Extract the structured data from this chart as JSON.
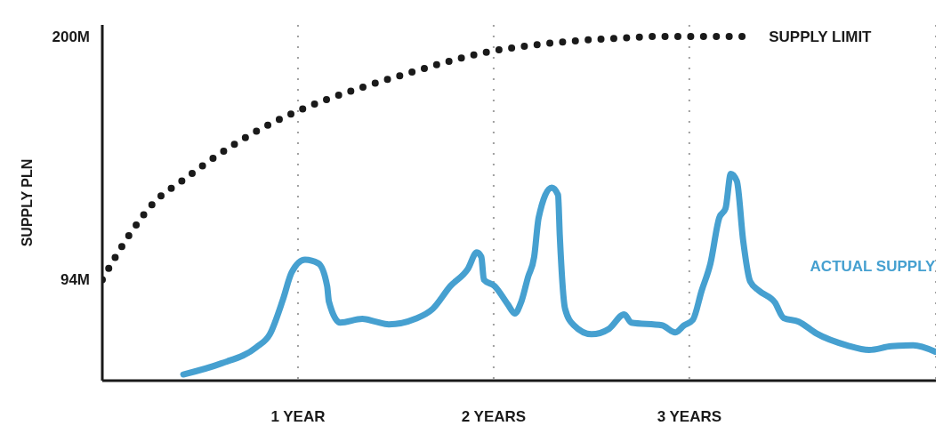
{
  "chart_data": {
    "type": "line",
    "ylabel": "SUPPLY PLN",
    "xlim": [
      0,
      4.26
    ],
    "ylim": [
      50,
      205
    ],
    "xticks": [
      {
        "value": 1,
        "label": "1 YEAR"
      },
      {
        "value": 2,
        "label": "2 YEARS"
      },
      {
        "value": 3,
        "label": "3 YEARS"
      }
    ],
    "yticks": [
      {
        "value": 94,
        "label": "94M"
      },
      {
        "value": 200,
        "label": "200M"
      }
    ],
    "grid": "x",
    "legend": false,
    "series": [
      {
        "name": "SUPPLY LIMIT",
        "color": "#1a1a1a",
        "line_style": "dotted",
        "x": [
          0,
          0.135,
          0.27,
          0.405,
          0.586,
          0.788,
          0.968,
          1.149,
          1.329,
          1.554,
          1.779,
          1.973,
          2.185,
          2.41,
          2.635,
          2.86,
          3.27
        ],
        "values": [
          94,
          113.1,
          128.1,
          136.9,
          148,
          158.7,
          166.3,
          172.6,
          177.8,
          183.7,
          189.3,
          193.3,
          196,
          198,
          199.2,
          200,
          200
        ]
      },
      {
        "name": "ACTUAL SUPPLY",
        "color": "#46a0d0",
        "line_style": "solid",
        "x": [
          0.414,
          0.608,
          0.788,
          0.856,
          0.923,
          0.968,
          1.036,
          1.104,
          1.149,
          1.158,
          1.216,
          1.329,
          1.396,
          1.464,
          1.599,
          1.689,
          1.779,
          1.869,
          1.914,
          1.937,
          1.95,
          2.005,
          2.072,
          2.108,
          2.14,
          2.176,
          2.207,
          2.23,
          2.297,
          2.329,
          2.338,
          2.365,
          2.41,
          2.5,
          2.59,
          2.667,
          2.703,
          2.86,
          2.928,
          2.973,
          3.018,
          3.063,
          3.108,
          3.153,
          3.185,
          3.212,
          3.243,
          3.275,
          3.311,
          3.356,
          3.437,
          3.482,
          3.559,
          3.649,
          3.806,
          3.919,
          4.032,
          4.144,
          4.257
        ],
        "values": [
          52.7,
          57.5,
          64.6,
          70.2,
          85.3,
          97.2,
          102.7,
          101.1,
          91.2,
          84.5,
          75.3,
          76.9,
          75.7,
          74.5,
          76.9,
          81.3,
          91.2,
          98.8,
          105.9,
          103.9,
          94,
          91.2,
          83.3,
          79.3,
          84.1,
          95.2,
          103.9,
          121,
          134.1,
          130.9,
          113.1,
          81.3,
          74.1,
          70.2,
          72.6,
          78.9,
          75.3,
          74.1,
          71,
          74.1,
          76.5,
          89.2,
          101.1,
          121,
          125,
          140.1,
          136.9,
          111.1,
          93.2,
          89.2,
          84.1,
          77.3,
          75.7,
          70.6,
          65.4,
          63.4,
          65,
          65.4,
          62.6
        ]
      }
    ]
  }
}
